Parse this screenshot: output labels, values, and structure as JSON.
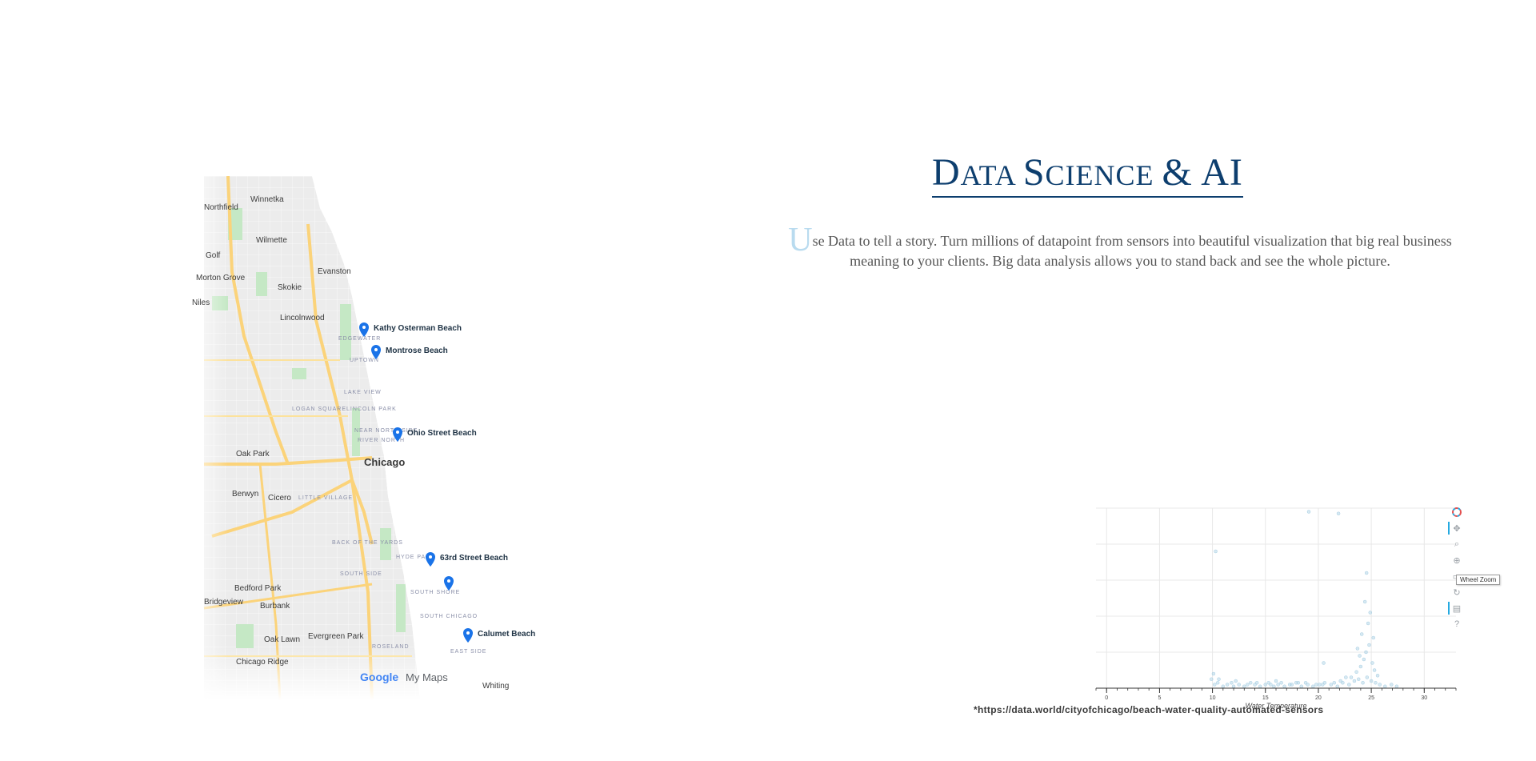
{
  "map": {
    "pins": [
      {
        "label": "Kathy Osterman Beach"
      },
      {
        "label": "Montrose Beach"
      },
      {
        "label": "Ohio Street Beach"
      },
      {
        "label": "63rd Street Beach"
      },
      {
        "label": ""
      },
      {
        "label": "Calumet Beach"
      }
    ],
    "places": {
      "winnetka": "Winnetka",
      "northfield": "Northfield",
      "wilmette": "Wilmette",
      "golf": "Golf",
      "evanston": "Evanston",
      "morton_grove": "Morton Grove",
      "skokie": "Skokie",
      "niles": "Niles",
      "lincolnwood": "Lincolnwood",
      "oak_park": "Oak Park",
      "chicago": "Chicago",
      "berwyn": "Berwyn",
      "cicero": "Cicero",
      "bedford_park": "Bedford Park",
      "burbank": "Burbank",
      "bridgeview": "Bridgeview",
      "oak_lawn": "Oak Lawn",
      "evergreen_park": "Evergreen\nPark",
      "chicago_ridge": "Chicago Ridge",
      "whiting": "Whiting"
    },
    "neighborhoods": {
      "edgewater": "EDGEWATER",
      "uptown": "UPTOWN",
      "lake_view": "LAKE VIEW",
      "logan_square": "LOGAN SQUARE",
      "lincoln_park": "LINCOLN PARK",
      "near_north": "NEAR NORTH SIDE",
      "river_north": "RIVER NORTH",
      "little_village": "LITTLE VILLAGE",
      "back_of_yards": "BACK OF THE YARDS",
      "hyde_park": "HYDE PARK",
      "south_side": "SOUTH SIDE",
      "south_shore": "SOUTH SHORE",
      "south_chicago": "SOUTH CHICAGO",
      "roseland": "ROSELAND",
      "east_side": "EAST SIDE"
    },
    "branding": {
      "google": "Google",
      "my_maps": "My Maps"
    },
    "colors": {
      "land": "#f1f1f1",
      "water": "#aadaff",
      "park": "#c5e8c5",
      "highway": "#fbd37a",
      "pin": "#1a73e8"
    }
  },
  "title": {
    "first_D": "D",
    "ata": "ata ",
    "S": "S",
    "cience": "cience ",
    "amp_ai": "& AI"
  },
  "intro": {
    "dropcap": "U",
    "text": "se Data to tell a story. Turn millions of datapoint from sensors into beautiful visualization that big real business meaning to your clients. Big data analysis allows you to stand back and see the whole picture."
  },
  "plot": {
    "toolbar": {
      "tools": [
        "bokeh-logo-icon",
        "pan-icon",
        "box-zoom-icon",
        "wheel-zoom-icon",
        "save-icon",
        "reset-icon",
        "hover-icon",
        "help-icon"
      ],
      "tooltip": "Wheel Zoom"
    }
  },
  "chart_data": {
    "type": "scatter",
    "xlabel": "Water Temperature",
    "ylabel": "",
    "xlim": [
      -1,
      33
    ],
    "ylim": [
      0,
      100
    ],
    "x_ticks": [
      0,
      5,
      10,
      15,
      20,
      25,
      30
    ],
    "grid": true,
    "color": "#a6cee3",
    "series": [
      {
        "x": [
          10.2,
          10.5,
          11,
          11.4,
          12,
          12.5,
          13,
          13.6,
          14,
          14.5,
          15,
          15.3,
          15.8,
          16.2,
          16.8,
          17.3,
          17.9,
          18.4,
          19,
          19.5,
          20.1,
          20.6,
          21.2,
          21.8,
          22.3,
          22.9,
          23.4,
          23.8,
          24.2,
          24.6,
          25,
          25.4,
          25.8,
          26.3,
          26.9,
          27.4,
          10.1,
          10.6,
          12.2,
          14.2,
          16,
          18.1,
          20.4,
          22.1,
          23.1,
          23.6,
          24,
          24.3,
          24.5,
          24.8,
          25.1,
          25.3,
          25.6,
          24.1,
          24.7,
          23.9,
          24.9,
          25.2,
          24.4,
          23.7,
          22.6,
          21.5,
          19.8,
          18.8,
          17.5,
          16.5,
          15.5,
          13.3,
          11.8,
          9.9,
          20.5,
          10.3,
          19.1,
          21.9,
          24.55
        ],
        "y": [
          2,
          3,
          1,
          2,
          1,
          2,
          1,
          3,
          2,
          1,
          2,
          3,
          1,
          2,
          1,
          2,
          3,
          1,
          2,
          1,
          2,
          3,
          2,
          1,
          3,
          2,
          4,
          5,
          3,
          6,
          4,
          3,
          2,
          1,
          2,
          1,
          8,
          5,
          4,
          3,
          4,
          3,
          2,
          4,
          6,
          9,
          12,
          16,
          20,
          24,
          14,
          10,
          7,
          30,
          36,
          18,
          42,
          28,
          48,
          22,
          6,
          3,
          2,
          3,
          2,
          3,
          2,
          2,
          3,
          5,
          14,
          76,
          98,
          97,
          64
        ]
      }
    ]
  },
  "source": "*https://data.world/cityofchicago/beach-water-quality-automated-sensors"
}
